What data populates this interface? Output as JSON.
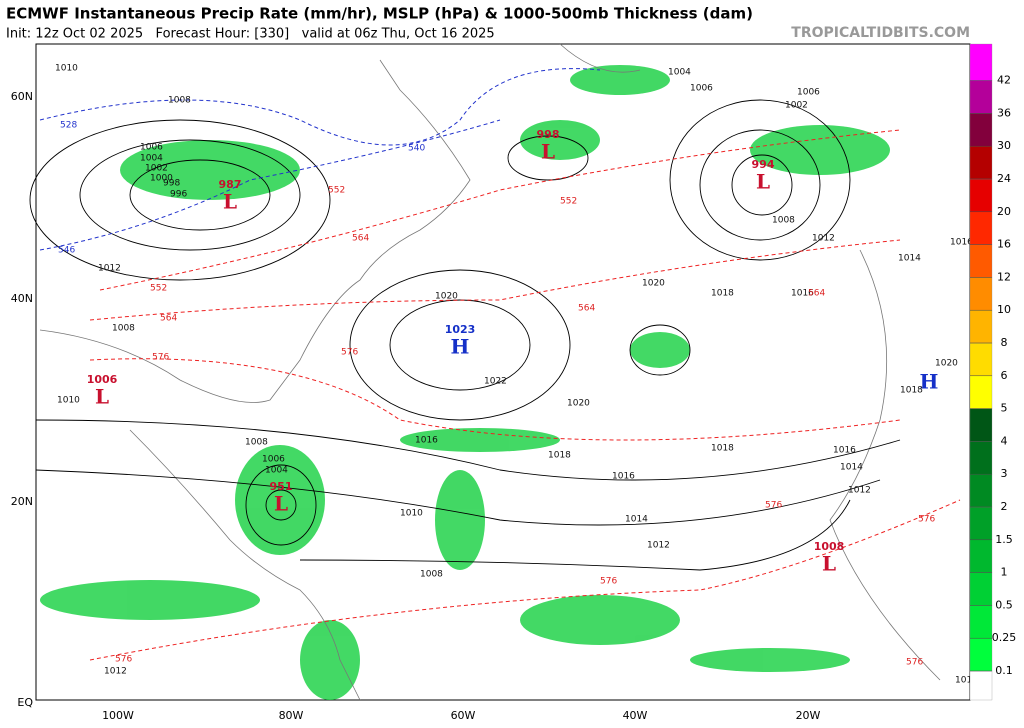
{
  "header": {
    "title": "ECMWF Instantaneous Precip Rate (mm/hr), MSLP (hPa) & 1000-500mb Thickness (dam)",
    "subtitle": "Init: 12z Oct 02 2025   Forecast Hour: [330]   valid at 06z Thu, Oct 16 2025",
    "brand": "TROPICALTIDBITS.COM"
  },
  "map": {
    "lat_labels": [
      "60N",
      "40N",
      "20N",
      "EQ"
    ],
    "lon_labels": [
      "100W",
      "80W",
      "60W",
      "40W",
      "20W"
    ],
    "centers": [
      {
        "type": "L",
        "value": "987"
      },
      {
        "type": "L",
        "value": "998"
      },
      {
        "type": "L",
        "value": "994"
      },
      {
        "type": "H",
        "value": "1023"
      },
      {
        "type": "L",
        "value": "1006"
      },
      {
        "type": "L",
        "value": "951"
      },
      {
        "type": "L",
        "value": "1008"
      },
      {
        "type": "H"
      }
    ],
    "isobar_labels": [
      "1010",
      "1008",
      "1006",
      "1004",
      "1002",
      "1000",
      "998",
      "996",
      "1012",
      "1010",
      "1008",
      "1004",
      "1006",
      "1016",
      "1018",
      "1020",
      "1022",
      "1020",
      "1018",
      "1016",
      "1014",
      "1012",
      "1010",
      "1008",
      "1016",
      "1020",
      "1018",
      "1016",
      "1014",
      "1012",
      "1010",
      "1004",
      "1006",
      "1002",
      "1006",
      "1008",
      "1012",
      "1008",
      "1016",
      "1014",
      "1012",
      "1018",
      "1020"
    ],
    "thickness_labels": [
      "528",
      "540",
      "546",
      "552",
      "564",
      "576",
      "552",
      "564",
      "576",
      "564",
      "576",
      "576",
      "576",
      "576",
      "564",
      "552",
      "576"
    ]
  },
  "colorbar": {
    "ticks": [
      0.1,
      0.25,
      0.5,
      1,
      1.5,
      2,
      3,
      4,
      5,
      6,
      8,
      10,
      12,
      16,
      20,
      24,
      30,
      36,
      42
    ],
    "colors": [
      "#ffffff",
      "#00ff3c",
      "#00e838",
      "#00d034",
      "#00b82e",
      "#00a028",
      "#008a22",
      "#00701c",
      "#005616",
      "#ffff00",
      "#ffdc00",
      "#ffb400",
      "#ff8c00",
      "#ff5a00",
      "#ff2800",
      "#e60000",
      "#b40000",
      "#82003c",
      "#b4009a",
      "#ff00ff"
    ]
  }
}
